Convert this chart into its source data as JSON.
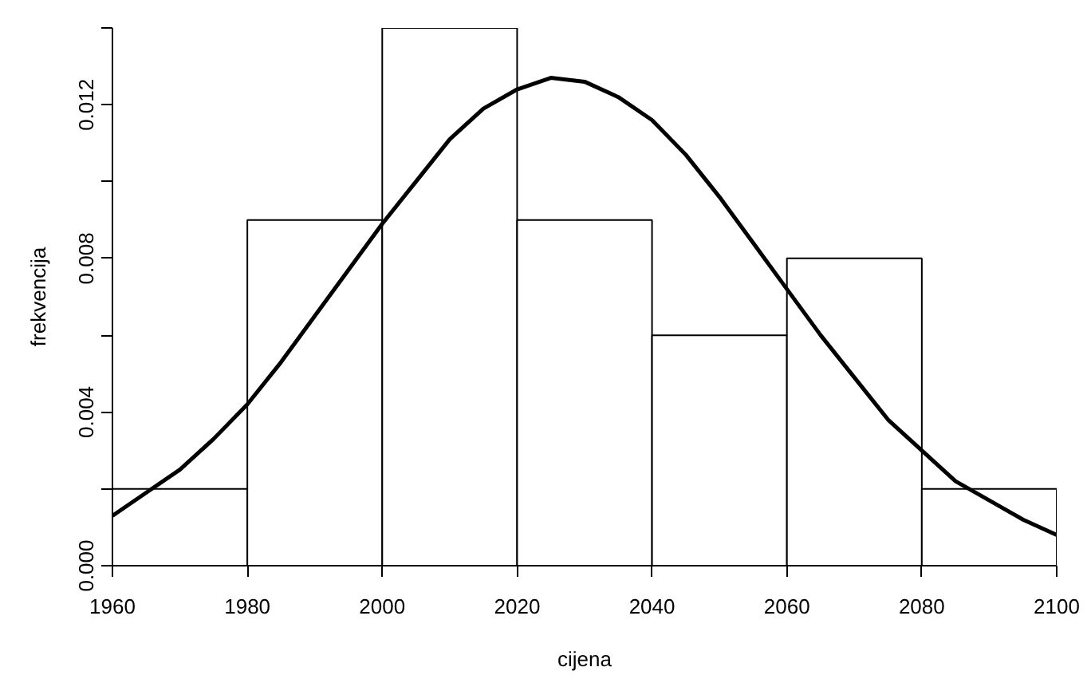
{
  "chart_data": {
    "type": "histogram",
    "xlabel": "cijena",
    "ylabel": "frekvencija",
    "bins": [
      1960,
      1980,
      2000,
      2020,
      2040,
      2060,
      2080,
      2100
    ],
    "values": [
      0.002,
      0.009,
      0.014,
      0.009,
      0.006,
      0.008,
      0.002
    ],
    "color": "#ffffff",
    "series": [
      {
        "type": "line",
        "color": "#000000",
        "x": [
          1960,
          1965,
          1970,
          1975,
          1980,
          1985,
          1990,
          1995,
          2000,
          2005,
          2010,
          2015,
          2020,
          2025,
          2030,
          2035,
          2040,
          2045,
          2050,
          2055,
          2060,
          2065,
          2070,
          2075,
          2080,
          2085,
          2090,
          2095,
          2100
        ],
        "values": [
          0.0013,
          0.0019,
          0.0025,
          0.0033,
          0.0042,
          0.0053,
          0.0065,
          0.0077,
          0.0089,
          0.01,
          0.0111,
          0.0119,
          0.0124,
          0.0127,
          0.0126,
          0.0122,
          0.0116,
          0.0107,
          0.0096,
          0.0084,
          0.0072,
          0.006,
          0.0049,
          0.0038,
          0.003,
          0.0022,
          0.0017,
          0.0012,
          0.0008
        ]
      }
    ],
    "xlim": [
      1960,
      2100
    ],
    "ylim": [
      0,
      0.014
    ],
    "xticks": [
      1960,
      1980,
      2000,
      2020,
      2040,
      2060,
      2080,
      2100
    ],
    "yticks": [
      {
        "value": 0,
        "label": "0.000"
      },
      {
        "value": 0.002,
        "label": null
      },
      {
        "value": 0.004,
        "label": "0.004"
      },
      {
        "value": 0.006,
        "label": null
      },
      {
        "value": 0.008,
        "label": "0.008"
      },
      {
        "value": 0.01,
        "label": null
      },
      {
        "value": 0.012,
        "label": "0.012"
      },
      {
        "value": 0.014,
        "label": null
      }
    ],
    "grid": false
  }
}
